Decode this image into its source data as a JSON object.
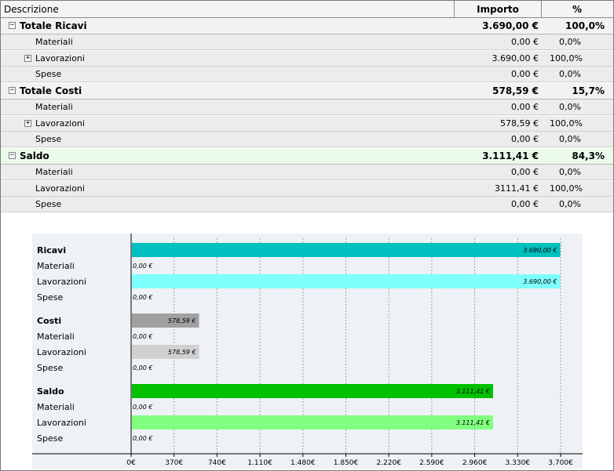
{
  "grid": {
    "columns": {
      "descrizione": "Descrizione",
      "importo": "Importo",
      "percentuale": "%"
    },
    "groups": [
      {
        "name": "ricavi",
        "label": "Totale Ricavi",
        "importo": "3.690,00 €",
        "pct": "100,0%",
        "children": [
          {
            "label": "Materiali",
            "importo": "0,00 €",
            "pct": "0,0%",
            "expandable": false
          },
          {
            "label": "Lavorazioni",
            "importo": "3.690,00 €",
            "pct": "100,0%",
            "expandable": true
          },
          {
            "label": "Spese",
            "importo": "0,00 €",
            "pct": "0,0%",
            "expandable": false
          }
        ]
      },
      {
        "name": "costi",
        "label": "Totale Costi",
        "importo": "578,59 €",
        "pct": "15,7%",
        "children": [
          {
            "label": "Materiali",
            "importo": "0,00 €",
            "pct": "0,0%",
            "expandable": false
          },
          {
            "label": "Lavorazioni",
            "importo": "578,59 €",
            "pct": "100,0%",
            "expandable": true
          },
          {
            "label": "Spese",
            "importo": "0,00 €",
            "pct": "0,0%",
            "expandable": false
          }
        ]
      },
      {
        "name": "saldo",
        "label": "Saldo",
        "importo": "3.111,41 €",
        "pct": "84,3%",
        "children": [
          {
            "label": "Materiali",
            "importo": "0,00 €",
            "pct": "0,0%",
            "expandable": false
          },
          {
            "label": "Lavorazioni",
            "importo": "3111,41 €",
            "pct": "100,0%",
            "expandable": false
          },
          {
            "label": "Spese",
            "importo": "0,00 €",
            "pct": "0,0%",
            "expandable": false
          }
        ]
      }
    ],
    "expand_glyph_open": "−",
    "expand_glyph_closed": "+"
  },
  "chart_data": {
    "type": "bar",
    "orientation": "horizontal",
    "xlim": [
      0,
      3700
    ],
    "x_ticks": [
      "0€",
      "370€",
      "740€",
      "1.110€",
      "1.480€",
      "1.850€",
      "2.220€",
      "2.590€",
      "2.960€",
      "3.330€",
      "3.700€"
    ],
    "grid": true,
    "groups": [
      {
        "name": "ricavi",
        "bars": [
          {
            "label": "Ricavi",
            "value": 3690.0,
            "data_label": "3.690,00 €",
            "bold": true,
            "color": "#00c0c0"
          },
          {
            "label": "Materiali",
            "value": 0,
            "data_label": "0,00 €",
            "bold": false,
            "color": "#80ffff"
          },
          {
            "label": "Lavorazioni",
            "value": 3690.0,
            "data_label": "3.690,00 €",
            "bold": false,
            "color": "#80ffff"
          },
          {
            "label": "Spese",
            "value": 0,
            "data_label": "0,00 €",
            "bold": false,
            "color": "#80ffff"
          }
        ]
      },
      {
        "name": "costi",
        "bars": [
          {
            "label": "Costi",
            "value": 578.59,
            "data_label": "578,59 €",
            "bold": true,
            "color": "#a0a0a0"
          },
          {
            "label": "Materiali",
            "value": 0,
            "data_label": "0,00 €",
            "bold": false,
            "color": "#d0d0d0"
          },
          {
            "label": "Lavorazioni",
            "value": 578.59,
            "data_label": "578,59 €",
            "bold": false,
            "color": "#d0d0d0"
          },
          {
            "label": "Spese",
            "value": 0,
            "data_label": "0,00 €",
            "bold": false,
            "color": "#d0d0d0"
          }
        ]
      },
      {
        "name": "saldo",
        "bars": [
          {
            "label": "Saldo",
            "value": 3111.41,
            "data_label": "3.111,41 €",
            "bold": true,
            "color": "#00c000"
          },
          {
            "label": "Materiali",
            "value": 0,
            "data_label": "0,00 €",
            "bold": false,
            "color": "#80ff80"
          },
          {
            "label": "Lavorazioni",
            "value": 3111.41,
            "data_label": "3.111,41 €",
            "bold": false,
            "color": "#80ff80"
          },
          {
            "label": "Spese",
            "value": 0,
            "data_label": "0,00 €",
            "bold": false,
            "color": "#80ff80"
          }
        ]
      }
    ]
  }
}
